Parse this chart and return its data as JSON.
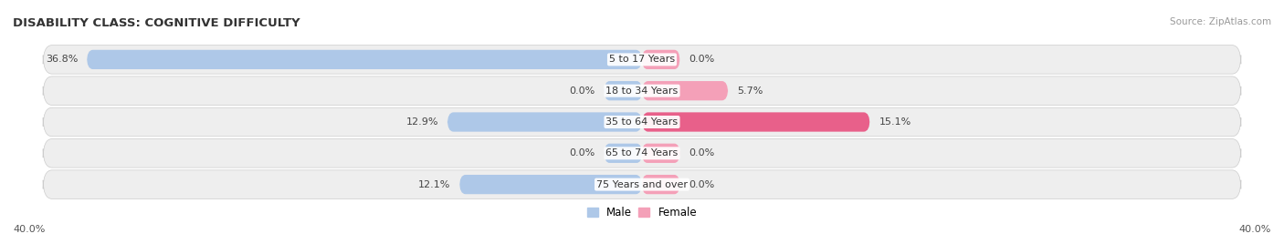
{
  "title": "DISABILITY CLASS: COGNITIVE DIFFICULTY",
  "source": "Source: ZipAtlas.com",
  "categories": [
    "5 to 17 Years",
    "18 to 34 Years",
    "35 to 64 Years",
    "65 to 74 Years",
    "75 Years and over"
  ],
  "male_values": [
    36.8,
    0.0,
    12.9,
    0.0,
    12.1
  ],
  "female_values": [
    0.0,
    5.7,
    15.1,
    0.0,
    0.0
  ],
  "x_max": 40.0,
  "male_color": "#aec8e8",
  "female_color": "#f4a0b8",
  "female_color_dark": "#e8608a",
  "male_label": "Male",
  "female_label": "Female",
  "row_bg_color": "#eeeeee",
  "row_bg_alt": "#e8e8e8",
  "title_fontsize": 9.5,
  "label_fontsize": 8,
  "tick_fontsize": 8,
  "legend_fontsize": 8.5,
  "source_fontsize": 7.5
}
